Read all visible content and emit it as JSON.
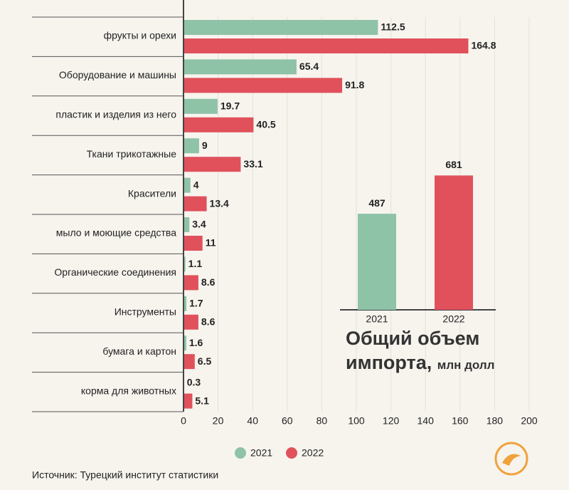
{
  "chart_data": [
    {
      "type": "hbar",
      "categories": [
        "фрукты и орехи",
        "Оборудование и машины",
        "пластик и изделия из него",
        "Ткани трикотажные",
        "Красители",
        "мыло и моющие средства",
        "Органические соединения",
        "Инструменты",
        "бумага и картон",
        "корма для животных"
      ],
      "series": [
        {
          "name": "2021",
          "color": "#8ec3a7",
          "values": [
            112.5,
            65.4,
            19.7,
            9,
            4,
            3.4,
            1.1,
            1.7,
            1.6,
            0.3
          ]
        },
        {
          "name": "2022",
          "color": "#e0515b",
          "values": [
            164.8,
            91.8,
            40.5,
            33.1,
            13.4,
            11,
            8.6,
            8.6,
            6.5,
            5.1
          ]
        }
      ],
      "xlim": [
        0,
        200
      ],
      "xticks": [
        0,
        20,
        40,
        60,
        80,
        100,
        120,
        140,
        160,
        180,
        200
      ],
      "grid": true,
      "source": "Источник: Турецкий институт статистики"
    },
    {
      "type": "bar",
      "title": "Общий объем импорта,",
      "subtitle": "млн долл",
      "categories": [
        "2021",
        "2022"
      ],
      "values": [
        487,
        681
      ],
      "colors": [
        "#8ec3a7",
        "#e0515b"
      ]
    }
  ]
}
